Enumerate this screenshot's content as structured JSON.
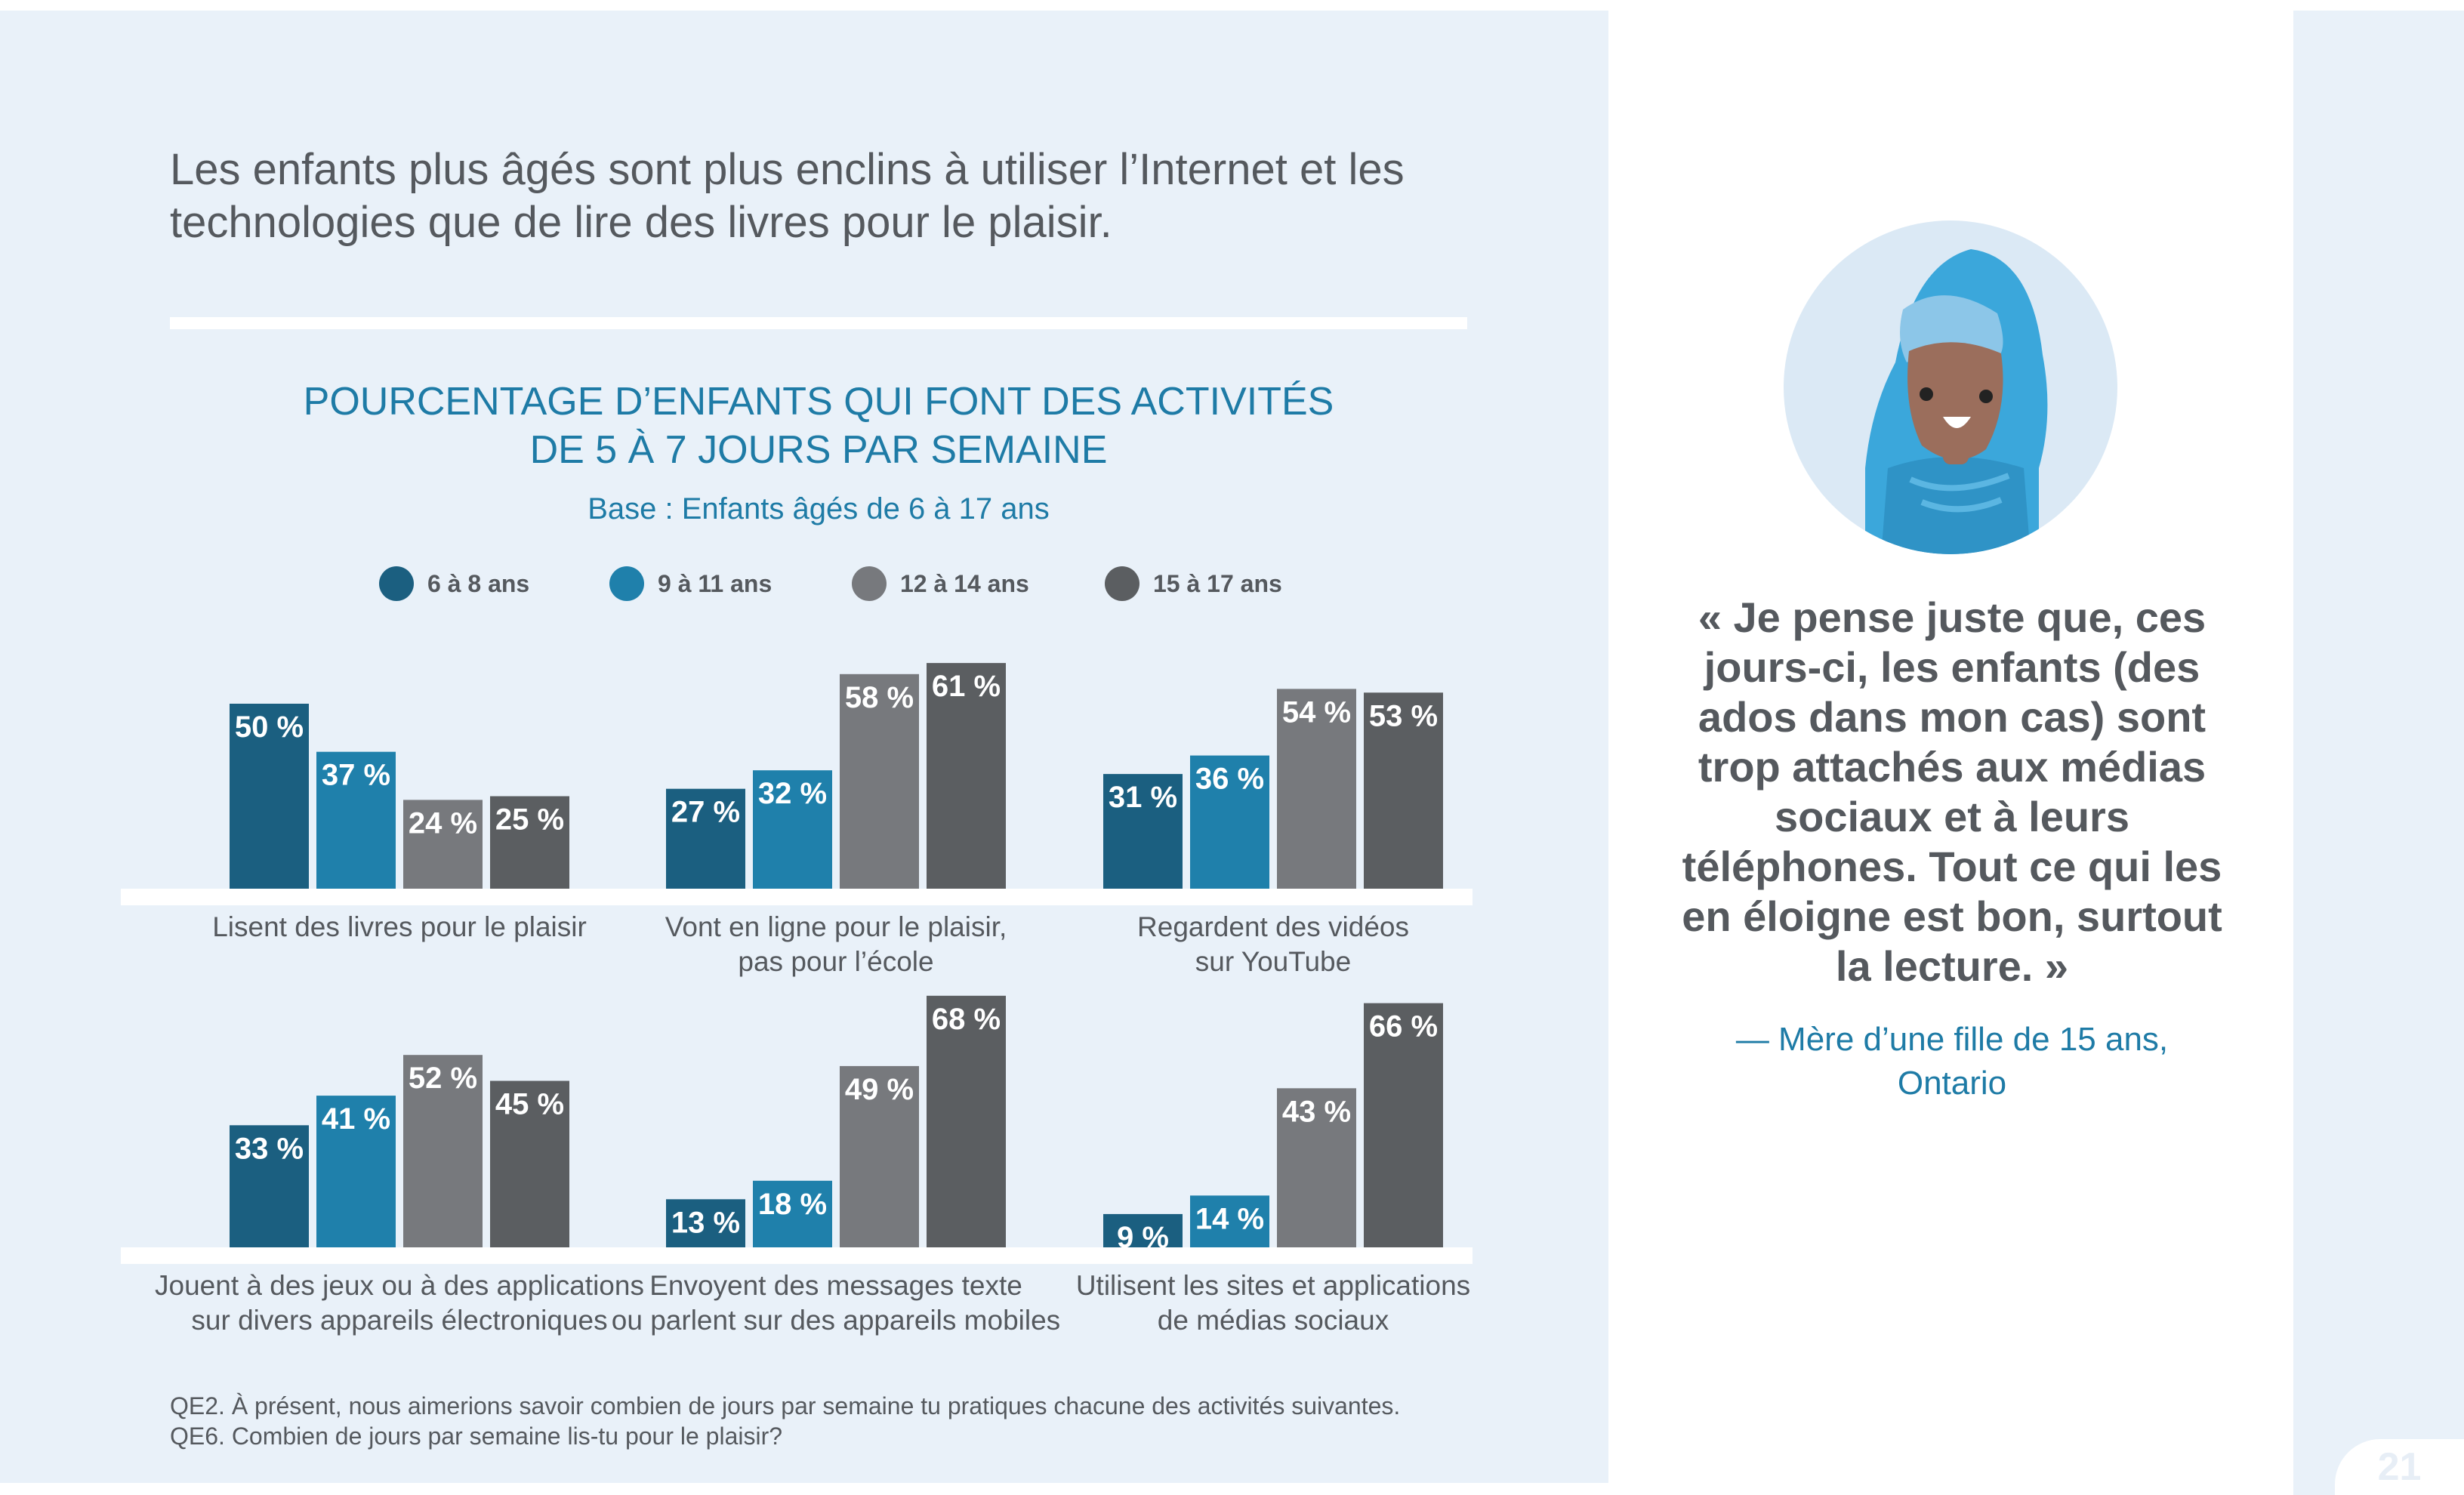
{
  "page": {
    "number": "21",
    "headline": "Les enfants plus âgés sont plus enclins à utiliser l’Internet et les technologies que de lire des livres pour le plaisir.",
    "footnotes": [
      "QE2. À présent, nous aimerions savoir combien de jours par semaine tu pratiques chacune des activités suivantes.",
      "QE6. Combien de jours par semaine lis-tu pour le plaisir?"
    ],
    "quote": {
      "text": "« Je pense juste que, ces jours-ci, les enfants (des ados dans mon cas) sont trop attachés aux médias sociaux et à leurs téléphones. Tout ce qui les en éloigne est bon, surtout la lecture. »",
      "source_line1": "— Mère d’une fille de 15 ans,",
      "source_line2": "Ontario"
    },
    "colors": {
      "panel_background": "#e9f1f9",
      "title_blue": "#1e7ba6",
      "text_gray": "#55595e"
    },
    "icons": {
      "avatar": "child-in-hijab-avatar-icon"
    }
  },
  "chart_data": {
    "type": "bar",
    "title_line1": "POURCENTAGE D’ENFANTS QUI FONT DES ACTIVITÉS",
    "title_line2": "DE 5 À 7 JOURS PAR SEMAINE",
    "subtitle": "Base : Enfants âgés de 6 à 17 ans",
    "legend_position": "top",
    "grid": false,
    "unit_suffix": " %",
    "series": [
      {
        "name": "6 à 8 ans",
        "color": "#1b5f80"
      },
      {
        "name": "9 à 11 ans",
        "color": "#1f80ab"
      },
      {
        "name": "12 à 14 ans",
        "color": "#77797d"
      },
      {
        "name": "15 à 17 ans",
        "color": "#5b5e61"
      }
    ],
    "ylim": [
      0,
      70
    ],
    "panels": [
      {
        "label_line1": "Lisent des livres pour le plaisir",
        "label_line2": "",
        "values": [
          50,
          37,
          24,
          25
        ]
      },
      {
        "label_line1": "Vont en ligne pour le plaisir,",
        "label_line2": "pas pour l’école",
        "values": [
          27,
          32,
          58,
          61
        ]
      },
      {
        "label_line1": "Regardent des vidéos",
        "label_line2": "sur YouTube",
        "values": [
          31,
          36,
          54,
          53
        ]
      },
      {
        "label_line1": "Jouent à des jeux ou à des applications",
        "label_line2": "sur divers appareils électroniques",
        "values": [
          33,
          41,
          52,
          45
        ]
      },
      {
        "label_line1": "Envoyent des messages texte",
        "label_line2": "ou parlent sur des appareils mobiles",
        "values": [
          13,
          18,
          49,
          68
        ]
      },
      {
        "label_line1": "Utilisent les sites et applications",
        "label_line2": "de médias sociaux",
        "values": [
          9,
          14,
          43,
          66
        ]
      }
    ]
  }
}
